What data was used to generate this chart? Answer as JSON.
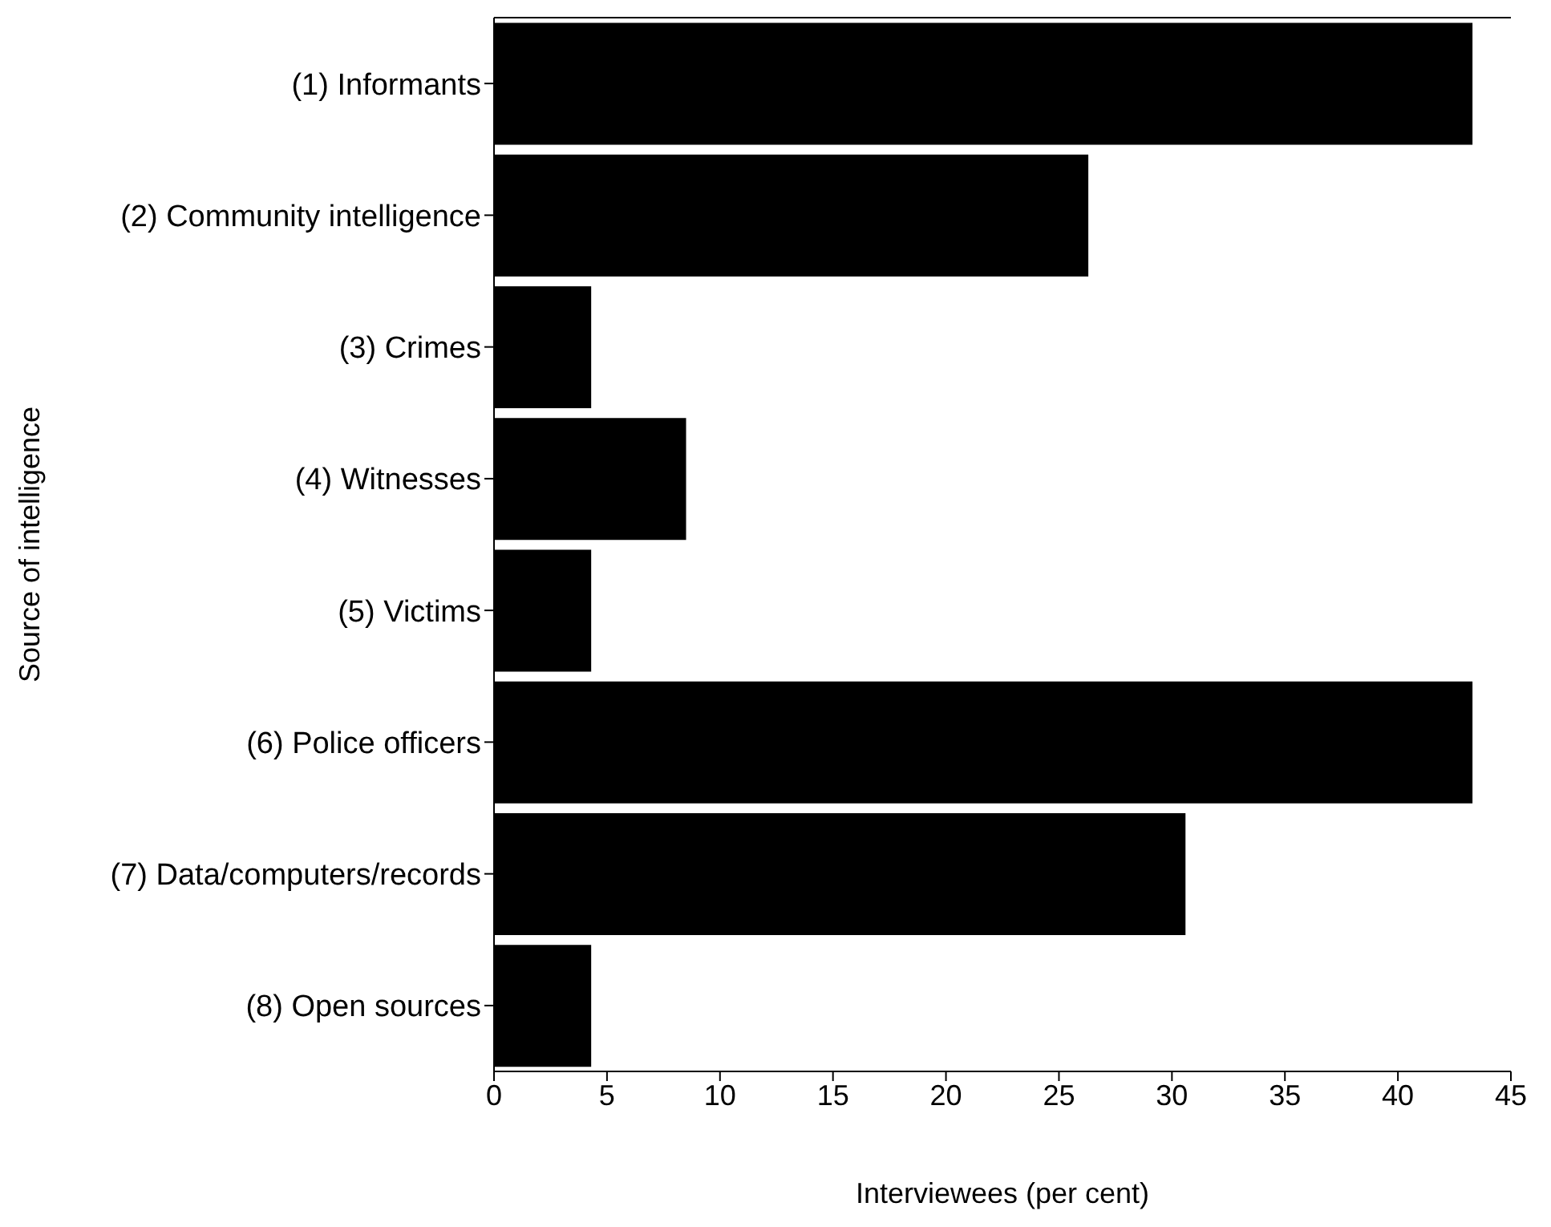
{
  "chart_data": {
    "type": "bar",
    "orientation": "horizontal",
    "xlabel": "Interviewees (per cent)",
    "ylabel": "Source of intelligence",
    "categories": [
      "(1) Informants",
      "(2) Community intelligence",
      "(3) Crimes",
      "(4) Witnesses",
      "(5) Victims",
      "(6) Police officers",
      "(7) Data/computers/records",
      "(8) Open sources"
    ],
    "values": [
      43.3,
      26.3,
      4.3,
      8.5,
      4.3,
      43.3,
      30.6,
      4.3
    ],
    "color": "#000000",
    "xlim": [
      0,
      45
    ],
    "xticks": [
      0,
      5,
      10,
      15,
      20,
      25,
      30,
      35,
      40,
      45
    ],
    "grid": false,
    "legend": false
  }
}
